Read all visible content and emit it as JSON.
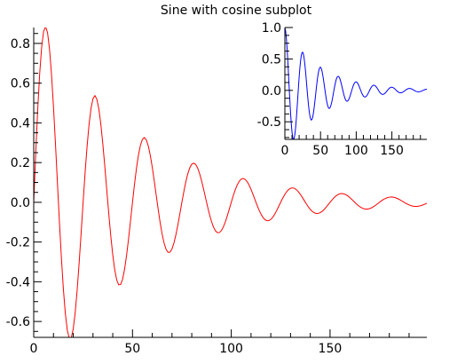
{
  "title": "Sine with cosine subplot",
  "chart_data": [
    {
      "type": "line",
      "panel": "main",
      "title": "Sine with cosine subplot",
      "xlabel": "",
      "ylabel": "",
      "xlim": [
        0,
        199
      ],
      "ylim": [
        -0.68,
        0.88
      ],
      "x_ticks": [
        0,
        50,
        100,
        150
      ],
      "x_tick_labels": [
        "0",
        "50",
        "100",
        "150"
      ],
      "y_ticks": [
        -0.6,
        -0.4,
        -0.2,
        0.0,
        0.2,
        0.4,
        0.6,
        0.8
      ],
      "y_tick_labels": [
        "-0.6",
        "-0.4",
        "-0.2",
        "0.0",
        "0.2",
        "0.4",
        "0.6",
        "0.8"
      ],
      "grid": false,
      "series": [
        {
          "color": "#ff0000",
          "formula": "y = sin(2*pi*x/25) * exp(-0.02*x)",
          "x_range": [
            0,
            199
          ],
          "n_points": 200,
          "x": [
            0,
            6,
            19,
            31,
            44,
            56,
            69,
            81,
            94,
            106,
            119,
            131,
            144,
            156,
            169,
            181,
            199
          ],
          "y": [
            0.0,
            0.88,
            -0.68,
            0.53,
            -0.41,
            0.32,
            -0.25,
            0.19,
            -0.15,
            0.12,
            -0.09,
            0.07,
            -0.05,
            0.04,
            -0.03,
            0.03,
            -0.005
          ]
        }
      ]
    },
    {
      "type": "line",
      "panel": "inset",
      "title": "",
      "xlabel": "",
      "ylabel": "",
      "xlim": [
        0,
        199
      ],
      "ylim": [
        -0.78,
        1.0
      ],
      "x_ticks": [
        0,
        50,
        100,
        150
      ],
      "x_tick_labels": [
        "0",
        "50",
        "100",
        "150"
      ],
      "y_ticks": [
        -0.5,
        0.0,
        0.5,
        1.0
      ],
      "y_tick_labels": [
        "-0.5",
        "0.0",
        "0.5",
        "1.0"
      ],
      "grid": false,
      "series": [
        {
          "color": "#0000ff",
          "formula": "y = cos(2*pi*x/25) * exp(-0.02*x)",
          "x_range": [
            0,
            199
          ],
          "n_points": 200,
          "x": [
            0,
            12.5,
            25,
            37.5,
            50,
            62.5,
            75,
            87.5,
            100,
            112.5,
            125,
            137.5,
            150,
            162.5,
            175,
            187.5,
            199
          ],
          "y": [
            1.0,
            -0.78,
            0.61,
            -0.47,
            0.37,
            -0.29,
            0.22,
            -0.17,
            0.14,
            -0.11,
            0.08,
            -0.06,
            0.05,
            -0.04,
            0.03,
            -0.02,
            0.02
          ]
        }
      ]
    }
  ]
}
